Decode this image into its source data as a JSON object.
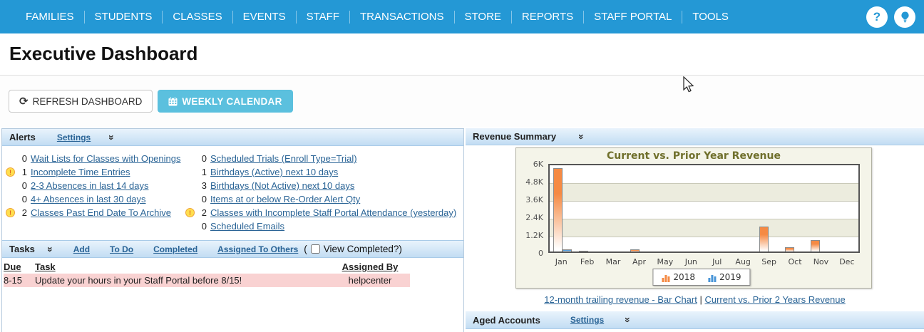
{
  "nav": {
    "items": [
      "FAMILIES",
      "STUDENTS",
      "CLASSES",
      "EVENTS",
      "STAFF",
      "TRANSACTIONS",
      "STORE",
      "REPORTS",
      "STAFF PORTAL",
      "TOOLS"
    ],
    "help_glyph": "?"
  },
  "page": {
    "title": "Executive Dashboard"
  },
  "toolbar": {
    "refresh_label": "REFRESH DASHBOARD",
    "calendar_label": "WEEKLY CALENDAR"
  },
  "alerts": {
    "title": "Alerts",
    "settings_label": "Settings",
    "items_left": [
      {
        "count": "0",
        "label": "Wait Lists for Classes with Openings",
        "warning": false
      },
      {
        "count": "1",
        "label": "Incomplete Time Entries",
        "warning": true
      },
      {
        "count": "0",
        "label": "2-3 Absences in last 14 days",
        "warning": false
      },
      {
        "count": "0",
        "label": "4+ Absences in last 30 days",
        "warning": false
      },
      {
        "count": "2",
        "label": "Classes Past End Date To Archive",
        "warning": true
      }
    ],
    "items_right": [
      {
        "count": "0",
        "label": "Scheduled Trials (Enroll Type=Trial)",
        "warning": false
      },
      {
        "count": "1",
        "label": "Birthdays (Active) next 10 days",
        "warning": false
      },
      {
        "count": "3",
        "label": "Birthdays (Not Active) next 10 days",
        "warning": false
      },
      {
        "count": "0",
        "label": "Items at or below Re-Order Alert Qty",
        "warning": false
      },
      {
        "count": "2",
        "label": "Classes with Incomplete Staff Portal Attendance (yesterday)",
        "warning": true
      },
      {
        "count": "0",
        "label": "Scheduled Emails",
        "warning": false
      }
    ]
  },
  "tasks": {
    "title": "Tasks",
    "links": [
      "Add",
      "To Do",
      "Completed",
      "Assigned To Others"
    ],
    "paren_open": "(",
    "view_completed_label": "View Completed?",
    "paren_close": ")",
    "columns": [
      "Due",
      "Task",
      "Assigned By"
    ],
    "rows": [
      {
        "due": "8-15",
        "task": "Update your hours in your Staff Portal before 8/15!",
        "assigned_by": "helpcenter"
      }
    ]
  },
  "revenue": {
    "title": "Revenue Summary",
    "footer_links": [
      "12-month trailing revenue - Bar Chart",
      "Current vs. Prior 2 Years Revenue"
    ],
    "footer_separator": "|"
  },
  "chart_data": {
    "type": "bar",
    "title": "Current vs. Prior Year Revenue",
    "categories": [
      "Jan",
      "Feb",
      "Mar",
      "Apr",
      "May",
      "Jun",
      "Jul",
      "Aug",
      "Sep",
      "Oct",
      "Nov",
      "Dec"
    ],
    "series": [
      {
        "name": "2018",
        "color": "#f58a44",
        "values": [
          5600,
          60,
          0,
          160,
          0,
          0,
          0,
          0,
          1700,
          300,
          760,
          0
        ]
      },
      {
        "name": "2019",
        "color": "#4a96d8",
        "values": [
          130,
          0,
          0,
          0,
          0,
          0,
          0,
          0,
          0,
          0,
          0,
          0
        ]
      }
    ],
    "ylim": [
      0,
      6000
    ],
    "ytick_labels": [
      "0",
      "1.2K",
      "2.4K",
      "3.6K",
      "4.8K",
      "6K"
    ],
    "legend_position": "bottom",
    "grid": true
  },
  "aged_accounts": {
    "title": "Aged Accounts",
    "settings_label": "Settings"
  },
  "colors": {
    "nav_bg": "#2498d5",
    "accent_button": "#5bc0de",
    "link": "#2a6496",
    "panel_header_top": "#e9f3fc",
    "panel_header_bottom": "#c2ddf3",
    "task_row_bg": "#f9d2d2",
    "warning_bg": "#ffdf4f",
    "warning_border": "#efa43a",
    "chart_bg": "#f4f4e9",
    "chart_title": "#70702c",
    "bar_2018": "#f58a44",
    "bar_2019": "#4a96d8"
  }
}
